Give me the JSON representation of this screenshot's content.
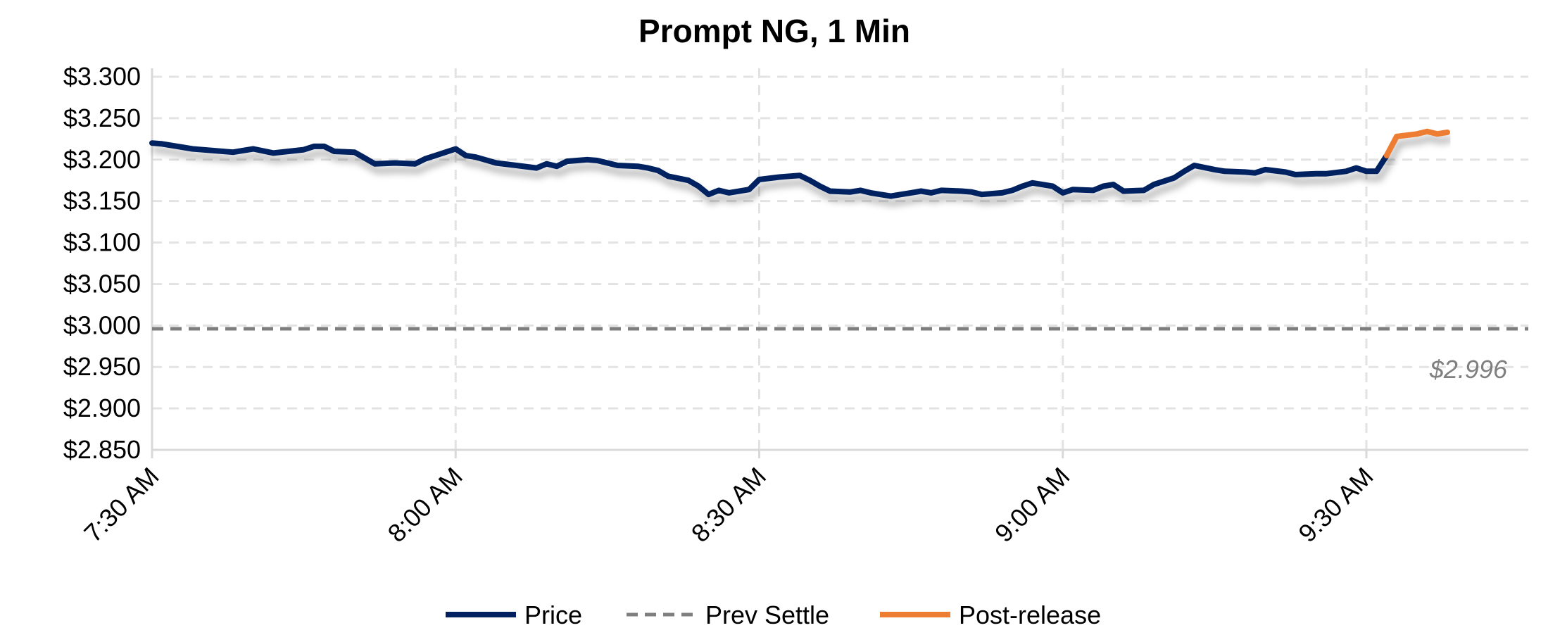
{
  "chart_data": {
    "type": "line",
    "title": "Prompt NG, 1 Min",
    "xlabel": "",
    "ylabel": "",
    "x_units": "minutes since 7:30 AM",
    "xlim": [
      0,
      136
    ],
    "ylim": [
      2.85,
      3.3
    ],
    "grid": true,
    "legend_position": "bottom",
    "y_ticks": [
      {
        "value": 3.3,
        "label": "$3.300"
      },
      {
        "value": 3.25,
        "label": "$3.250"
      },
      {
        "value": 3.2,
        "label": "$3.200"
      },
      {
        "value": 3.15,
        "label": "$3.150"
      },
      {
        "value": 3.1,
        "label": "$3.100"
      },
      {
        "value": 3.05,
        "label": "$3.050"
      },
      {
        "value": 3.0,
        "label": "$3.000"
      },
      {
        "value": 2.95,
        "label": "$2.950"
      },
      {
        "value": 2.9,
        "label": "$2.900"
      },
      {
        "value": 2.85,
        "label": "$2.850"
      }
    ],
    "x_ticks": [
      {
        "value": 0,
        "label": "7:30 AM"
      },
      {
        "value": 30,
        "label": "8:00 AM"
      },
      {
        "value": 60,
        "label": "8:30 AM"
      },
      {
        "value": 90,
        "label": "9:00 AM"
      },
      {
        "value": 120,
        "label": "9:30 AM"
      }
    ],
    "series": [
      {
        "name": "Price",
        "color": "#002060",
        "style": "solid",
        "points": [
          [
            0,
            3.22
          ],
          [
            1,
            3.219
          ],
          [
            4,
            3.213
          ],
          [
            8,
            3.209
          ],
          [
            10,
            3.213
          ],
          [
            12,
            3.208
          ],
          [
            15,
            3.212
          ],
          [
            16,
            3.216
          ],
          [
            17,
            3.216
          ],
          [
            18,
            3.21
          ],
          [
            20,
            3.209
          ],
          [
            21,
            3.202
          ],
          [
            22,
            3.195
          ],
          [
            24,
            3.196
          ],
          [
            26,
            3.195
          ],
          [
            27,
            3.201
          ],
          [
            28,
            3.205
          ],
          [
            30,
            3.213
          ],
          [
            31,
            3.205
          ],
          [
            32,
            3.203
          ],
          [
            34,
            3.196
          ],
          [
            36,
            3.193
          ],
          [
            38,
            3.19
          ],
          [
            39,
            3.195
          ],
          [
            40,
            3.192
          ],
          [
            41,
            3.198
          ],
          [
            42,
            3.199
          ],
          [
            43,
            3.2
          ],
          [
            44,
            3.199
          ],
          [
            46,
            3.193
          ],
          [
            48,
            3.192
          ],
          [
            49,
            3.19
          ],
          [
            50,
            3.187
          ],
          [
            51,
            3.18
          ],
          [
            53,
            3.175
          ],
          [
            54,
            3.168
          ],
          [
            55,
            3.158
          ],
          [
            56,
            3.163
          ],
          [
            57,
            3.16
          ],
          [
            59,
            3.164
          ],
          [
            60,
            3.176
          ],
          [
            62,
            3.179
          ],
          [
            63,
            3.18
          ],
          [
            64,
            3.181
          ],
          [
            65,
            3.175
          ],
          [
            66,
            3.168
          ],
          [
            67,
            3.162
          ],
          [
            69,
            3.161
          ],
          [
            70,
            3.163
          ],
          [
            71,
            3.16
          ],
          [
            73,
            3.156
          ],
          [
            74,
            3.158
          ],
          [
            75,
            3.16
          ],
          [
            76,
            3.162
          ],
          [
            77,
            3.16
          ],
          [
            78,
            3.163
          ],
          [
            80,
            3.162
          ],
          [
            81,
            3.161
          ],
          [
            82,
            3.158
          ],
          [
            84,
            3.16
          ],
          [
            85,
            3.163
          ],
          [
            86,
            3.168
          ],
          [
            87,
            3.172
          ],
          [
            89,
            3.168
          ],
          [
            90,
            3.16
          ],
          [
            91,
            3.164
          ],
          [
            93,
            3.163
          ],
          [
            94,
            3.168
          ],
          [
            95,
            3.17
          ],
          [
            96,
            3.162
          ],
          [
            98,
            3.163
          ],
          [
            99,
            3.17
          ],
          [
            101,
            3.178
          ],
          [
            102,
            3.186
          ],
          [
            103,
            3.193
          ],
          [
            105,
            3.188
          ],
          [
            106,
            3.186
          ],
          [
            108,
            3.185
          ],
          [
            109,
            3.184
          ],
          [
            110,
            3.188
          ],
          [
            112,
            3.185
          ],
          [
            113,
            3.182
          ],
          [
            115,
            3.183
          ],
          [
            116,
            3.183
          ],
          [
            118,
            3.186
          ],
          [
            119,
            3.19
          ],
          [
            120,
            3.186
          ],
          [
            121,
            3.186
          ],
          [
            122,
            3.205
          ]
        ]
      },
      {
        "name": "Prev Settle",
        "color": "#7f7f7f",
        "style": "dashed",
        "value": 2.996,
        "points": [
          [
            0,
            2.996
          ],
          [
            136,
            2.996
          ]
        ]
      },
      {
        "name": "Post-release",
        "color": "#ED7D31",
        "style": "solid",
        "points": [
          [
            122,
            3.205
          ],
          [
            123,
            3.228
          ],
          [
            125,
            3.231
          ],
          [
            126,
            3.234
          ],
          [
            127,
            3.231
          ],
          [
            128,
            3.233
          ]
        ]
      }
    ],
    "annotations": [
      {
        "text": "$2.996",
        "x": 136,
        "y": 2.996
      }
    ]
  }
}
